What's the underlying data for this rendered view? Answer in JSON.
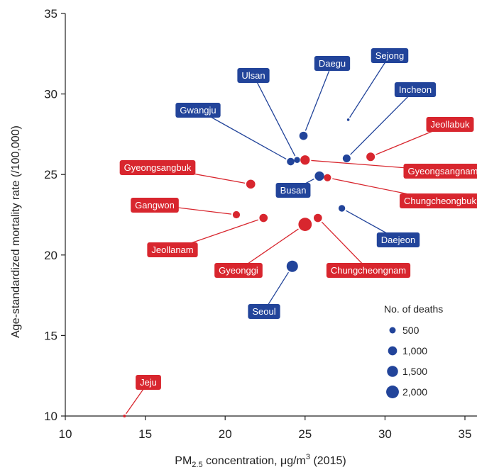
{
  "chart_data": {
    "type": "scatter",
    "xlabel": {
      "prefix": "PM",
      "sub": "2.5",
      "mid": " concentration, μg/m",
      "sup": "3",
      "suffix": " (2015)"
    },
    "ylabel": "Age-standardized mortality rate (/100,000)",
    "xlim": [
      10,
      35
    ],
    "ylim": [
      10,
      35
    ],
    "xticks": [
      10,
      15,
      20,
      25,
      30,
      35
    ],
    "yticks": [
      10,
      15,
      20,
      25,
      30,
      35
    ],
    "colors": {
      "blue": "#22449a",
      "red": "#d8262e"
    },
    "points": [
      {
        "name": "Sejong",
        "x": 27.7,
        "y": 28.4,
        "deaths": 80,
        "color": "blue"
      },
      {
        "name": "Daegu",
        "x": 24.9,
        "y": 27.4,
        "deaths": 850,
        "color": "blue"
      },
      {
        "name": "Ulsan",
        "x": 24.5,
        "y": 25.9,
        "deaths": 450,
        "color": "blue"
      },
      {
        "name": "Incheon",
        "x": 27.6,
        "y": 26.0,
        "deaths": 750,
        "color": "blue"
      },
      {
        "name": "Gwangju",
        "x": 24.1,
        "y": 25.8,
        "deaths": 700,
        "color": "blue"
      },
      {
        "name": "Jeollabuk",
        "x": 29.1,
        "y": 26.1,
        "deaths": 900,
        "color": "red"
      },
      {
        "name": "Gyeongsangnam",
        "x": 25.0,
        "y": 25.9,
        "deaths": 1100,
        "color": "red"
      },
      {
        "name": "Busan",
        "x": 25.9,
        "y": 24.9,
        "deaths": 1100,
        "color": "blue"
      },
      {
        "name": "Chungcheongbuk",
        "x": 26.4,
        "y": 24.8,
        "deaths": 650,
        "color": "red"
      },
      {
        "name": "Gyeongsangbuk",
        "x": 21.6,
        "y": 24.4,
        "deaths": 1000,
        "color": "red"
      },
      {
        "name": "Gangwon",
        "x": 20.7,
        "y": 22.5,
        "deaths": 650,
        "color": "red"
      },
      {
        "name": "Jeollanam",
        "x": 22.4,
        "y": 22.3,
        "deaths": 850,
        "color": "red"
      },
      {
        "name": "Chungcheongnam",
        "x": 25.8,
        "y": 22.3,
        "deaths": 850,
        "color": "red"
      },
      {
        "name": "Daejeon",
        "x": 27.3,
        "y": 22.9,
        "deaths": 550,
        "color": "blue"
      },
      {
        "name": "Gyeonggi",
        "x": 25.0,
        "y": 21.9,
        "deaths": 2200,
        "color": "red"
      },
      {
        "name": "Seoul",
        "x": 24.2,
        "y": 19.3,
        "deaths": 1600,
        "color": "blue"
      },
      {
        "name": "Jeju",
        "x": 13.7,
        "y": 10.0,
        "deaths": 100,
        "color": "red"
      }
    ],
    "legend": {
      "title": "No. of deaths",
      "position": "bottom-right",
      "items": [
        {
          "label": "500",
          "value": 500
        },
        {
          "label": "1,000",
          "value": 1000
        },
        {
          "label": "1,500",
          "value": 1500
        },
        {
          "label": "2,000",
          "value": 2000
        }
      ]
    }
  }
}
